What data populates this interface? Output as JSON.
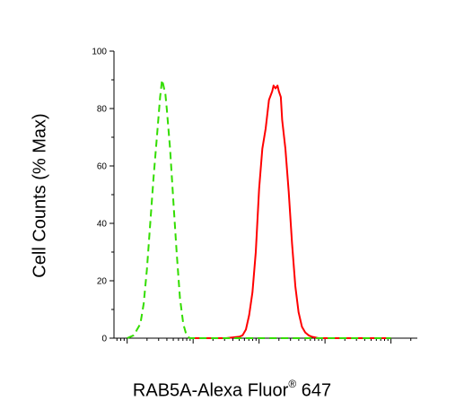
{
  "chart_data": {
    "type": "line",
    "title": "",
    "ylabel": "Cell Counts (% Max)",
    "xlabel": {
      "main": "RAB5A-Alexa Fluor",
      "superscript": "®",
      "suffix": " 647"
    },
    "ylim": [
      0,
      100
    ],
    "yticks": [
      "0",
      "20",
      "40",
      "60",
      "80",
      "100"
    ],
    "x_axis": "log scale (fluorescence intensity), unlabeled ticks",
    "grid": false,
    "legend": "none",
    "series": [
      {
        "color": "#ff0000",
        "style": "solid",
        "x": [
          0,
          0.5,
          0.7,
          0.75,
          0.8,
          0.85,
          0.9,
          0.95,
          1.0,
          1.05,
          1.1,
          1.15,
          1.2,
          1.22,
          1.25,
          1.28,
          1.3,
          1.33,
          1.35,
          1.4,
          1.45,
          1.5,
          1.55,
          1.6,
          1.65,
          1.7,
          1.75,
          1.8,
          1.9,
          2.0,
          2.5,
          3.0
        ],
        "y": [
          0,
          0,
          0.5,
          1,
          3,
          8,
          16,
          30,
          52,
          66,
          73,
          83,
          86,
          88,
          87,
          88,
          86,
          84,
          76,
          66,
          51,
          33,
          18,
          9,
          4,
          2,
          1,
          0.5,
          0,
          0,
          0,
          0
        ]
      },
      {
        "color": "#33dd00",
        "style": "dashed",
        "x": [
          -1.0,
          -0.9,
          -0.8,
          -0.75,
          -0.7,
          -0.65,
          -0.6,
          -0.55,
          -0.5,
          -0.47,
          -0.45,
          -0.42,
          -0.4,
          -0.35,
          -0.3,
          -0.25,
          -0.2,
          -0.15,
          -0.1,
          -0.05,
          0,
          0.5,
          1.0,
          2.0,
          3.0
        ],
        "y": [
          0,
          1,
          5,
          12,
          24,
          40,
          56,
          70,
          84,
          90,
          88,
          85,
          80,
          66,
          48,
          30,
          14,
          5,
          1,
          0,
          0,
          0,
          0,
          0,
          0
        ]
      }
    ]
  }
}
